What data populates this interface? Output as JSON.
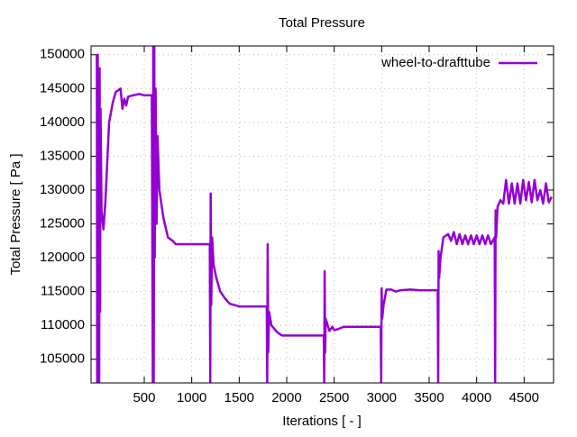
{
  "chart_data": {
    "type": "line",
    "title": "Total Pressure",
    "x_label": "Iterations [ - ]",
    "y_label": "Total Pressure [ Pa ]",
    "x": [
      1,
      5,
      10,
      15,
      20,
      25,
      30,
      35,
      40,
      50,
      70,
      90,
      110,
      130,
      150,
      170,
      200,
      250,
      270,
      290,
      310,
      330,
      380,
      450,
      500,
      560,
      580,
      590,
      595,
      600,
      605,
      610,
      620,
      630,
      640,
      660,
      700,
      750,
      800,
      830,
      900,
      1000,
      1100,
      1190,
      1195,
      1200,
      1205,
      1215,
      1230,
      1260,
      1300,
      1350,
      1400,
      1500,
      1600,
      1700,
      1790,
      1795,
      1800,
      1805,
      1815,
      1840,
      1900,
      1950,
      2100,
      2300,
      2390,
      2395,
      2400,
      2405,
      2410,
      2450,
      2480,
      2500,
      2550,
      2600,
      2700,
      2800,
      2990,
      2995,
      3000,
      3005,
      3020,
      3050,
      3100,
      3150,
      3200,
      3300,
      3400,
      3590,
      3595,
      3600,
      3605,
      3620,
      3650,
      3700,
      3730,
      3760,
      3790,
      3820,
      3850,
      3880,
      3910,
      3940,
      3970,
      4000,
      4030,
      4060,
      4090,
      4120,
      4150,
      4190,
      4195,
      4200,
      4205,
      4220,
      4250,
      4280,
      4310,
      4340,
      4370,
      4400,
      4430,
      4460,
      4490,
      4520,
      4550,
      4580,
      4610,
      4640,
      4670,
      4700,
      4730,
      4760,
      4790
    ],
    "series": [
      {
        "name": "wheel-to-drafttube",
        "color": "#9400d3",
        "values": [
          150000,
          101600,
          150000,
          101600,
          145000,
          101600,
          148000,
          112000,
          142000,
          127000,
          124200,
          128000,
          134000,
          140000,
          141500,
          143000,
          144500,
          145000,
          142000,
          143500,
          142500,
          143800,
          144000,
          144200,
          144000,
          144000,
          144000,
          101600,
          152000,
          101600,
          152000,
          120000,
          145000,
          125000,
          138000,
          130000,
          126000,
          123000,
          122500,
          122000,
          122000,
          122000,
          122000,
          122000,
          101600,
          129500,
          113000,
          123000,
          119000,
          117000,
          115000,
          114000,
          113200,
          112800,
          112800,
          112800,
          112800,
          101600,
          122000,
          106000,
          112000,
          110000,
          109000,
          108500,
          108500,
          108500,
          108500,
          101600,
          118000,
          106000,
          111000,
          109200,
          109800,
          109300,
          109500,
          109800,
          109800,
          109800,
          109800,
          101600,
          115500,
          111000,
          113000,
          115300,
          115300,
          115000,
          115200,
          115300,
          115200,
          115200,
          101600,
          121000,
          117000,
          120000,
          123000,
          123500,
          122500,
          123800,
          122000,
          123500,
          122000,
          123300,
          122000,
          123300,
          122000,
          123300,
          122000,
          123300,
          122000,
          123300,
          122000,
          123000,
          101600,
          127000,
          123000,
          127500,
          128500,
          128000,
          131500,
          128000,
          131000,
          128000,
          131000,
          128000,
          131500,
          128500,
          131200,
          128200,
          131500,
          128500,
          130000,
          128000,
          131000,
          128200,
          129000
        ]
      }
    ],
    "xlim": [
      -60,
      4810
    ],
    "ylim": [
      101500,
      151300
    ],
    "xticks": [
      500,
      1000,
      1500,
      2000,
      2500,
      3000,
      3500,
      4000,
      4500
    ],
    "yticks": [
      105000,
      110000,
      115000,
      120000,
      125000,
      130000,
      135000,
      140000,
      145000,
      150000
    ],
    "grid": true,
    "legend": "top-right"
  }
}
